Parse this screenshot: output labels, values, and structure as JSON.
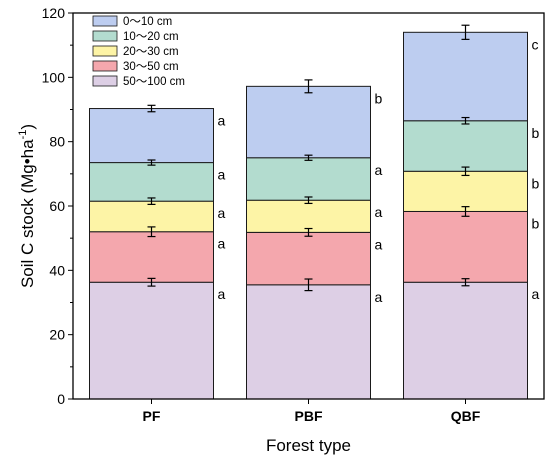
{
  "chart_data": {
    "type": "bar",
    "stacked": true,
    "categories": [
      "PF",
      "PBF",
      "QBF"
    ],
    "xlabel": "Forest type",
    "ylabel_parts": {
      "pre": "Soil C stock (Mg•ha",
      "sup": "-1",
      "post": ")"
    },
    "ylim": [
      0,
      120
    ],
    "yticks": [
      0,
      20,
      40,
      60,
      80,
      100,
      120
    ],
    "legend_position": "top-left",
    "series": [
      {
        "name": "50～100 cm",
        "color": "#ddcfe5",
        "values": [
          36.3,
          35.5,
          36.3
        ],
        "errors": [
          1.2,
          1.8,
          1.1
        ],
        "letters": [
          "a",
          "a",
          "a"
        ]
      },
      {
        "name": "30～50 cm",
        "color": "#f4a7ad",
        "values": [
          15.7,
          16.3,
          22.0
        ],
        "errors": [
          1.5,
          1.2,
          1.5
        ],
        "letters": [
          "a",
          "a",
          "b"
        ]
      },
      {
        "name": "20～30 cm",
        "color": "#fdf4a6",
        "values": [
          9.5,
          10.0,
          12.5
        ],
        "errors": [
          1.0,
          1.0,
          1.3
        ],
        "letters": [
          "a",
          "a",
          "b"
        ]
      },
      {
        "name": "10～20 cm",
        "color": "#b3dccf",
        "values": [
          12.0,
          13.2,
          15.7
        ],
        "errors": [
          0.8,
          0.8,
          1.0
        ],
        "letters": [
          "a",
          "a",
          "b"
        ]
      },
      {
        "name": "0～10 cm",
        "color": "#bdcdf0",
        "values": [
          16.8,
          22.2,
          27.5
        ],
        "errors": [
          1.0,
          2.0,
          2.2
        ],
        "letters": [
          "a",
          "b",
          "c"
        ]
      }
    ]
  }
}
